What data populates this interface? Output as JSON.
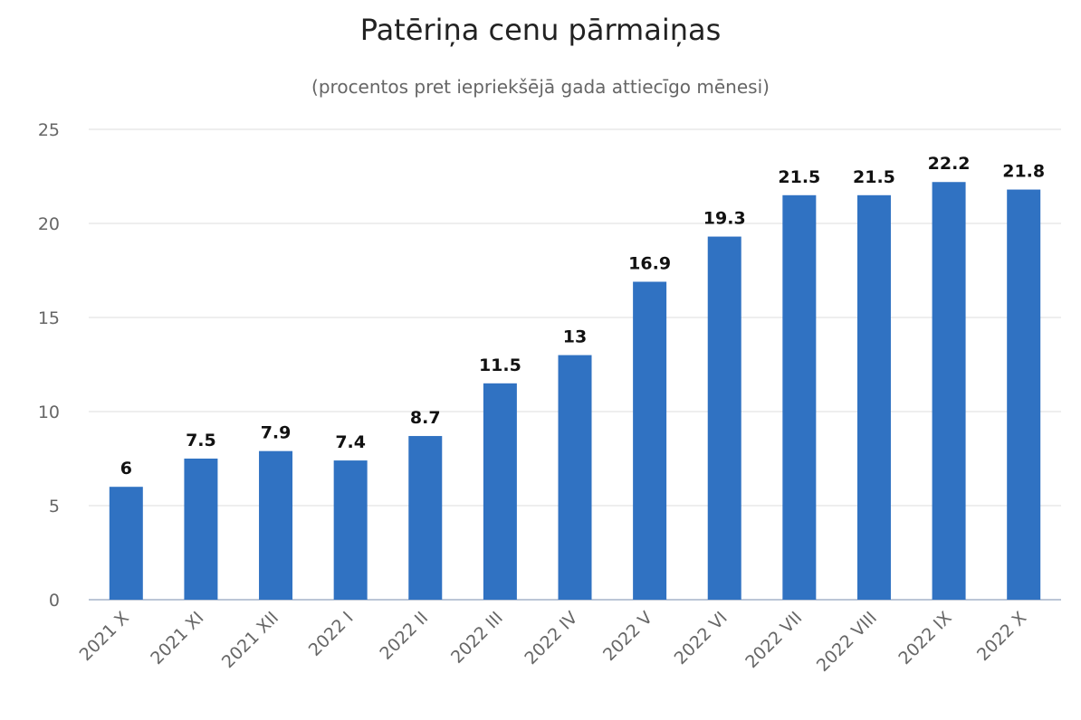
{
  "chart_data": {
    "type": "bar",
    "title": "Patēriņa cenu pārmaiņas",
    "subtitle": "(procentos pret iepriekšējā gada attiecīgo mēnesi)",
    "categories": [
      "2021 X",
      "2021 XI",
      "2021 XII",
      "2022 I",
      "2022 II",
      "2022 III",
      "2022 IV",
      "2022 V",
      "2022 VI",
      "2022 VII",
      "2022 VIII",
      "2022 IX",
      "2022 X"
    ],
    "values": [
      6,
      7.5,
      7.9,
      7.4,
      8.7,
      11.5,
      13,
      16.9,
      19.3,
      21.5,
      21.5,
      22.2,
      21.8
    ],
    "data_labels": [
      "6",
      "7.5",
      "7.9",
      "7.4",
      "8.7",
      "11.5",
      "13",
      "16.9",
      "19.3",
      "21.5",
      "21.5",
      "22.2",
      "21.8"
    ],
    "ylim": [
      0,
      25
    ],
    "yticks": [
      "0",
      "5",
      "10",
      "15",
      "20",
      "25"
    ],
    "grid": true,
    "bar_color": "#3072C2",
    "grid_color": "#dcdcdc"
  }
}
